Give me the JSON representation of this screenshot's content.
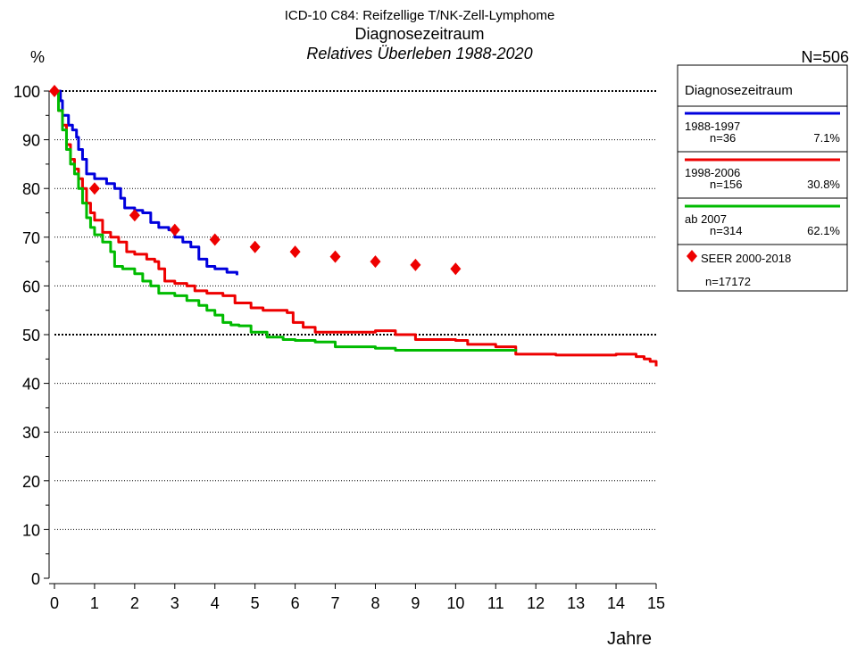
{
  "title_lines": [
    "ICD-10 C84: Reifzellige T/NK-Zell-Lymphome",
    "Diagnosezeitraum",
    "Relatives Überleben 1988-2020"
  ],
  "n_total": "N=506",
  "y_unit": "%",
  "x_unit": "Jahre",
  "legend": {
    "title": "Diagnosezeitraum",
    "entries": [
      {
        "label": "1988-1997",
        "n": "n=36",
        "pct": "7.1%",
        "color": "#0000dd"
      },
      {
        "label": "1998-2006",
        "n": "n=156",
        "pct": "30.8%",
        "color": "#ee0000"
      },
      {
        "label": "ab 2007",
        "n": "n=314",
        "pct": "62.1%",
        "color": "#00bb00"
      }
    ],
    "seer_label": "SEER 2000-2018",
    "seer_n": "n=17172"
  },
  "chart_data": {
    "type": "line",
    "xlabel": "Jahre",
    "ylabel": "%",
    "xlim": [
      0,
      15
    ],
    "ylim": [
      0,
      100
    ],
    "x_ticks": [
      "0",
      "1",
      "2",
      "3",
      "4",
      "5",
      "6",
      "7",
      "8",
      "9",
      "10",
      "11",
      "12",
      "13",
      "14",
      "15"
    ],
    "y_ticks": [
      "0",
      "10",
      "20",
      "30",
      "40",
      "50",
      "60",
      "70",
      "80",
      "90",
      "100"
    ],
    "grid": "horizontal dotted",
    "legend_position": "right",
    "series": [
      {
        "name": "1988-1997",
        "color": "#0000dd",
        "step": true,
        "x": [
          0,
          0.15,
          0.2,
          0.35,
          0.45,
          0.55,
          0.6,
          0.7,
          0.8,
          1.0,
          1.3,
          1.5,
          1.65,
          1.75,
          2.0,
          2.2,
          2.4,
          2.6,
          2.85,
          3.0,
          3.2,
          3.4,
          3.6,
          3.8,
          4.0,
          4.3,
          4.55
        ],
        "y": [
          100,
          98,
          95,
          93,
          92,
          90.5,
          88,
          86,
          83,
          82,
          81,
          80,
          78,
          76,
          75.5,
          75,
          73,
          72,
          71.5,
          70,
          69,
          68,
          65.5,
          64,
          63.5,
          62.8,
          62.2
        ]
      },
      {
        "name": "1998-2006",
        "color": "#ee0000",
        "step": true,
        "x": [
          0,
          0.1,
          0.2,
          0.3,
          0.4,
          0.5,
          0.6,
          0.7,
          0.8,
          0.9,
          1.0,
          1.2,
          1.4,
          1.6,
          1.8,
          2.0,
          2.3,
          2.5,
          2.6,
          2.75,
          3.0,
          3.3,
          3.5,
          3.8,
          4.2,
          4.5,
          4.9,
          5.2,
          5.8,
          5.95,
          6.2,
          6.5,
          8.0,
          8.5,
          9.0,
          10.0,
          10.3,
          11.0,
          11.5,
          12.5,
          14.0,
          14.5,
          14.7,
          14.85,
          15.0
        ],
        "y": [
          100,
          96,
          93,
          89,
          86,
          84,
          82,
          80,
          77,
          75,
          73.5,
          71,
          70,
          69,
          67,
          66.5,
          65.5,
          65,
          63.5,
          61,
          60.5,
          60,
          59,
          58.5,
          58,
          56.5,
          55.5,
          55,
          54.5,
          52.5,
          51.5,
          50.5,
          50.8,
          50,
          49,
          48.8,
          48,
          47.5,
          46,
          45.8,
          46,
          45.5,
          45,
          44.5,
          43.5
        ]
      },
      {
        "name": "ab 2007",
        "color": "#00bb00",
        "step": true,
        "x": [
          0,
          0.1,
          0.2,
          0.3,
          0.4,
          0.5,
          0.6,
          0.7,
          0.8,
          0.9,
          1.0,
          1.2,
          1.4,
          1.5,
          1.7,
          2.0,
          2.2,
          2.4,
          2.6,
          3.0,
          3.3,
          3.6,
          3.8,
          4.0,
          4.2,
          4.4,
          4.6,
          4.9,
          5.3,
          5.7,
          6.0,
          6.5,
          7.0,
          8.0,
          8.5,
          11.5
        ],
        "y": [
          100,
          96,
          92,
          88,
          85,
          83,
          80,
          77,
          74,
          72,
          70.5,
          69,
          67,
          64,
          63.5,
          62.5,
          61,
          60,
          58.5,
          58,
          57,
          56,
          55,
          54,
          52.5,
          52,
          51.8,
          50.5,
          49.5,
          49,
          48.8,
          48.5,
          47.5,
          47.2,
          46.8,
          47
        ]
      },
      {
        "name": "SEER 2000-2018",
        "color": "#ee0000",
        "marker": "diamond",
        "x": [
          0,
          1,
          2,
          3,
          4,
          5,
          6,
          7,
          8,
          9,
          10
        ],
        "y": [
          100,
          80,
          74.5,
          71.5,
          69.5,
          68,
          67,
          66,
          65,
          64.3,
          63.5
        ]
      }
    ],
    "reference_lines": [
      50,
      100
    ]
  }
}
